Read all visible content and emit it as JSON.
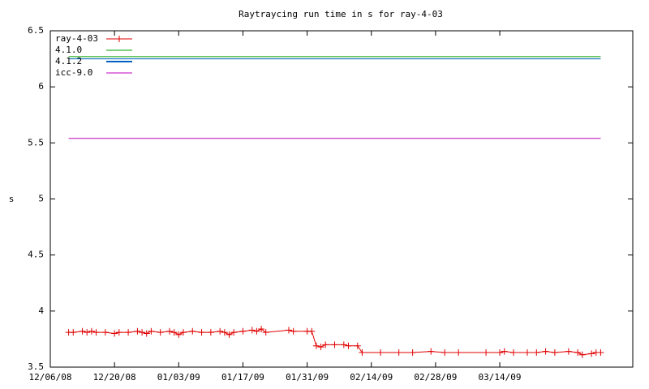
{
  "chart_data": {
    "type": "line",
    "title": "Raytraycing run time in s for ray-4-03",
    "y_label": "s",
    "xlim": [
      "12/06/08",
      "04/12/09"
    ],
    "xticks": [
      "12/06/08",
      "12/20/08",
      "01/03/09",
      "01/17/09",
      "01/31/09",
      "02/14/09",
      "02/28/09",
      "03/14/09"
    ],
    "ylim": [
      3.5,
      6.5
    ],
    "yticks": [
      3.5,
      4,
      4.5,
      5,
      5.5,
      6,
      6.5
    ],
    "grid": false,
    "legend": "top-left",
    "series": [
      {
        "name": "ray-4-03",
        "color": "#e00000",
        "markers": true,
        "x": [
          "12/10/08",
          "12/11/08",
          "12/13/08",
          "12/14/08",
          "12/15/08",
          "12/16/08",
          "12/18/08",
          "12/20/08",
          "12/21/08",
          "12/23/08",
          "12/25/08",
          "12/26/08",
          "12/27/08",
          "12/28/08",
          "12/30/08",
          "01/01/09",
          "01/02/09",
          "01/03/09",
          "01/04/09",
          "01/06/09",
          "01/08/09",
          "01/10/09",
          "01/12/09",
          "01/13/09",
          "01/14/09",
          "01/15/09",
          "01/17/09",
          "01/19/09",
          "01/20/09",
          "01/21/09",
          "01/22/09",
          "01/27/09",
          "01/28/09",
          "01/31/09",
          "02/01/09",
          "02/02/09",
          "02/03/09",
          "02/04/09",
          "02/06/09",
          "02/08/09",
          "02/09/09",
          "02/11/09",
          "02/12/09",
          "02/16/09",
          "02/20/09",
          "02/23/09",
          "02/27/09",
          "03/02/09",
          "03/05/09",
          "03/11/09",
          "03/14/09",
          "03/15/09",
          "03/17/09",
          "03/20/09",
          "03/22/09",
          "03/24/09",
          "03/26/09",
          "03/29/09",
          "03/31/09",
          "04/01/09",
          "04/03/09",
          "04/04/09",
          "04/05/09"
        ],
        "values": [
          3.81,
          3.81,
          3.82,
          3.81,
          3.82,
          3.81,
          3.81,
          3.8,
          3.81,
          3.81,
          3.82,
          3.81,
          3.8,
          3.82,
          3.81,
          3.82,
          3.81,
          3.79,
          3.81,
          3.82,
          3.81,
          3.81,
          3.82,
          3.81,
          3.79,
          3.81,
          3.82,
          3.83,
          3.82,
          3.84,
          3.81,
          3.83,
          3.82,
          3.82,
          3.82,
          3.69,
          3.68,
          3.7,
          3.7,
          3.7,
          3.69,
          3.69,
          3.63,
          3.63,
          3.63,
          3.63,
          3.64,
          3.63,
          3.63,
          3.63,
          3.63,
          3.64,
          3.63,
          3.63,
          3.63,
          3.64,
          3.63,
          3.64,
          3.63,
          3.61,
          3.62,
          3.63,
          3.63
        ]
      },
      {
        "name": "4.1.0",
        "color": "#00a000",
        "x": [
          "12/10/08",
          "04/05/09"
        ],
        "values": [
          6.27,
          6.27
        ]
      },
      {
        "name": "4.1.2",
        "color": "#0060c0",
        "x": [
          "12/10/08",
          "04/05/09"
        ],
        "values": [
          6.25,
          6.25
        ]
      },
      {
        "name": "icc-9.0",
        "color": "#c000c0",
        "x": [
          "12/10/08",
          "04/05/09"
        ],
        "values": [
          5.54,
          5.54
        ]
      }
    ]
  }
}
